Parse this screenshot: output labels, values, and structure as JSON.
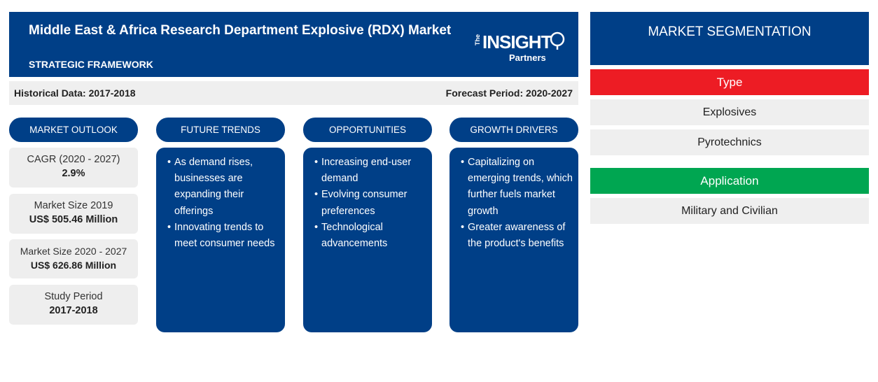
{
  "header": {
    "title": "Middle East & Africa Research Department Explosive (RDX) Market",
    "subtitle": "STRATEGIC FRAMEWORK",
    "logo": {
      "the": "The",
      "insight": "INSIGHT",
      "partners": "Partners"
    }
  },
  "periods": {
    "historical": "Historical Data: 2017-2018",
    "forecast": "Forecast Period: 2020-2027"
  },
  "columns": {
    "outlook": "MARKET OUTLOOK",
    "trends": "FUTURE TRENDS",
    "opportunities": "OPPORTUNITIES",
    "drivers": "GROWTH DRIVERS"
  },
  "outlook": [
    {
      "label": "CAGR (2020 - 2027)",
      "value": "2.9%"
    },
    {
      "label": "Market Size 2019",
      "value": "US$ 505.46 Million"
    },
    {
      "label": "Market Size 2020 - 2027",
      "value": "US$ 626.86 Million"
    },
    {
      "label": "Study Period",
      "value": "2017-2018"
    }
  ],
  "trends": [
    "As demand rises, businesses are expanding their offerings",
    "Innovating trends to meet consumer needs"
  ],
  "opportunities": [
    "Increasing end-user demand",
    "Evolving consumer preferences",
    "Technological advancements"
  ],
  "drivers": [
    "Capitalizing on emerging trends, which further fuels market growth",
    "Greater awareness of the product's benefits"
  ],
  "segmentation": {
    "title": "MARKET SEGMENTATION",
    "type_label": "Type",
    "type_items": [
      "Explosives",
      "Pyrotechnics"
    ],
    "application_label": "Application",
    "application_items": [
      "Military and Civilian"
    ]
  },
  "colors": {
    "navy": "#003f87",
    "type_red": "#ed1c24",
    "application_green": "#00a651",
    "light_gray": "#efefef"
  }
}
